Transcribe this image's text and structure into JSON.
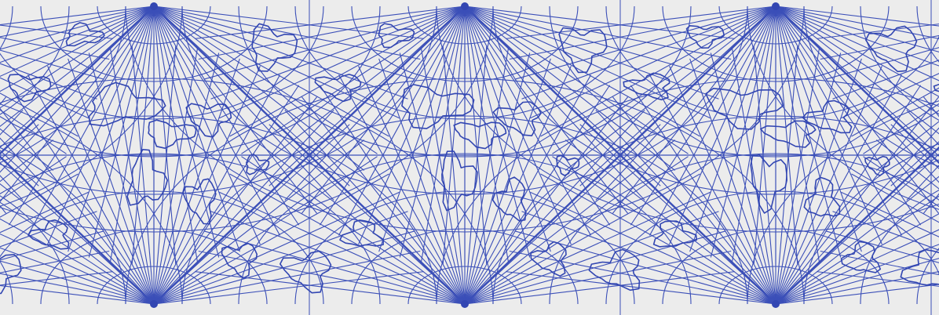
{
  "figure": {
    "kind": "map",
    "projection_style": "repeating diamond (quincuncial-like) world map tiling",
    "background_color": "#ececec",
    "line_color": "#3b4fb8",
    "land_outline_color": "#3246b2",
    "meridians_per_pole_fan": 36,
    "parallels_per_hemisphere": 6
  }
}
